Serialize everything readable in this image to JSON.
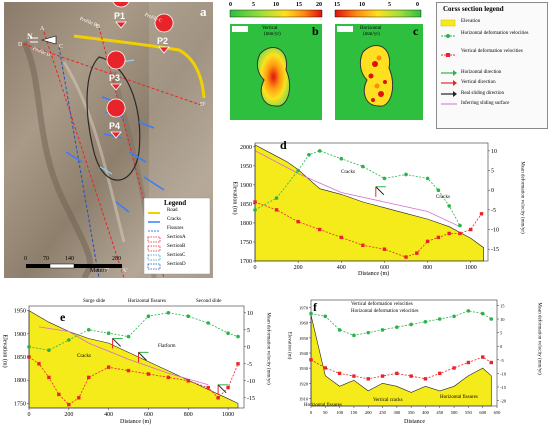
{
  "panels": {
    "a": {
      "letter": "a",
      "profile_labels": [
        "Profile B",
        "Profile C",
        "Profile D"
      ],
      "markers": [
        "P1",
        "P2",
        "P3",
        "P4"
      ],
      "points": [
        "A",
        "A'",
        "B",
        "B'",
        "C",
        "C'",
        "D",
        "D'"
      ],
      "north": "N",
      "legend": {
        "title": "Legend",
        "items": [
          "Road",
          "Cracks",
          "Fissures",
          "SectionA",
          "SectionB",
          "SectionC",
          "SectionD"
        ]
      },
      "scale": {
        "ticks": [
          "0",
          "70",
          "140",
          "280"
        ],
        "unit": "Meters"
      }
    },
    "b": {
      "letter": "b",
      "title_line1": "Vertical",
      "title_line2": "(mm/yr)",
      "cbar_ticks": [
        "0",
        "5",
        "10",
        "15",
        "20"
      ]
    },
    "c": {
      "letter": "c",
      "title_line1": "Horizontal",
      "title_line2": "(mm/yr)",
      "cbar_ticks": [
        "15",
        "10",
        "5",
        "0"
      ]
    },
    "legend": {
      "title": "Corss section legend",
      "items": [
        "Elevation",
        "Horizontal deformation velocities",
        "Vertical deformation velocities",
        "Horizontal direction",
        "Vertical direction",
        "Real sliding direction",
        "Inferring sliding surface"
      ]
    },
    "d": {
      "letter": "d",
      "xlabel": "Distance (m)",
      "ylabel": "Elevation (m)",
      "y2label": "Mean deformation velocity (mm/yr)",
      "xticks": [
        "0",
        "200",
        "400",
        "600",
        "800",
        "1000"
      ],
      "yticks": [
        "2000",
        "1950",
        "1900",
        "1850",
        "1800",
        "1750",
        "1700"
      ],
      "y2ticks": [
        "10",
        "5",
        "0",
        "-5",
        "-10",
        "-15"
      ],
      "annotations": [
        "Cracks",
        "Cracks"
      ]
    },
    "e": {
      "letter": "e",
      "xlabel": "Distance (m)",
      "ylabel": "Elevation (m)",
      "y2label": "Mean deformation velocity (mm/yr)",
      "xticks": [
        "0",
        "200",
        "400",
        "600",
        "800",
        "1000"
      ],
      "yticks": [
        "1950",
        "1900",
        "1850",
        "1800",
        "1750"
      ],
      "y2ticks": [
        "10",
        "5",
        "0",
        "-5",
        "-10",
        "-15"
      ],
      "zones": [
        "Surge slide",
        "Horizontal fissures",
        "Second slide"
      ],
      "annotations": [
        "Cracks",
        "Flatform"
      ]
    },
    "f": {
      "letter": "f",
      "xlabel": "Distance",
      "ylabel": "Elevation (m)",
      "y2label": "Mean deformation velocity (mm/yr)",
      "xticks": [
        "0",
        "50",
        "100",
        "150",
        "200",
        "250",
        "300",
        "350",
        "400",
        "450",
        "500",
        "550",
        "600",
        "650"
      ],
      "yticks": [
        "1970",
        "1960",
        "1950",
        "1940",
        "1930",
        "1920",
        "1910"
      ],
      "y2ticks": [
        "15",
        "10",
        "5",
        "0",
        "-5",
        "-10",
        "-15",
        "-20"
      ],
      "legend": [
        "Vertical deformation velocities",
        "Horizontal deformation velocities"
      ],
      "annotations": [
        "Horizontal fissures",
        "Vertical cracks",
        "Horizontal fissures"
      ]
    }
  },
  "colors": {
    "elevation": "#f5ea1a",
    "horizontal": "#2ab34a",
    "vertical": "#e8242a",
    "sliding_surface": "#d070d0",
    "road": "#f0d000"
  },
  "chart_data": [
    {
      "type": "area",
      "panel": "d",
      "elevation": {
        "x": [
          0,
          100,
          150,
          200,
          300,
          400,
          500,
          600,
          700,
          800,
          900,
          1000,
          1060
        ],
        "y": [
          2005,
          1975,
          1960,
          1940,
          1890,
          1875,
          1855,
          1840,
          1825,
          1810,
          1790,
          1760,
          1735
        ]
      },
      "series": [
        {
          "x": [
            0,
            100,
            200,
            250,
            300,
            400,
            500,
            600,
            700,
            800,
            850,
            900,
            950
          ],
          "y": [
            -5,
            -2,
            5,
            9,
            10,
            8,
            6,
            3,
            4,
            3,
            0,
            -4,
            -9
          ]
        },
        {
          "x": [
            0,
            100,
            200,
            300,
            400,
            500,
            600,
            700,
            750,
            800,
            850,
            900,
            950,
            1000,
            1050
          ],
          "y": [
            -3,
            -5,
            -8,
            -10,
            -12,
            -14,
            -15,
            -17,
            -16,
            -13,
            -12,
            -11,
            -11,
            -10,
            -6
          ]
        }
      ]
    },
    {
      "type": "area",
      "panel": "e",
      "elevation": {
        "x": [
          0,
          100,
          200,
          300,
          400,
          500,
          600,
          700,
          800,
          900,
          1000,
          1050
        ],
        "y": [
          1950,
          1925,
          1905,
          1890,
          1880,
          1860,
          1840,
          1820,
          1800,
          1780,
          1760,
          1750
        ]
      },
      "series": [
        {
          "x": [
            0,
            100,
            200,
            300,
            400,
            500,
            600,
            700,
            800,
            900,
            1000,
            1050
          ],
          "y": [
            0,
            -1,
            2,
            5,
            4,
            3,
            9,
            10,
            9,
            7,
            4,
            3
          ]
        },
        {
          "x": [
            0,
            50,
            100,
            150,
            200,
            250,
            300,
            400,
            500,
            600,
            700,
            800,
            900,
            950,
            1000,
            1050
          ],
          "y": [
            -3,
            -5,
            -9,
            -14,
            -17,
            -15,
            -9,
            -6,
            -7,
            -8,
            -9,
            -10,
            -12,
            -15,
            -12,
            -5
          ]
        }
      ]
    },
    {
      "type": "area",
      "panel": "f",
      "elevation": {
        "x": [
          0,
          50,
          100,
          150,
          200,
          250,
          300,
          350,
          400,
          450,
          500,
          550,
          600,
          630
        ],
        "y": [
          1965,
          1925,
          1918,
          1922,
          1915,
          1920,
          1918,
          1914,
          1918,
          1915,
          1918,
          1925,
          1930,
          1925
        ]
      },
      "series": [
        {
          "name": "Vertical deformation velocities",
          "x": [
            0,
            50,
            100,
            150,
            200,
            250,
            300,
            350,
            400,
            450,
            500,
            550,
            600,
            630
          ],
          "y": [
            -5,
            -8,
            -10,
            -11,
            -12,
            -11,
            -10,
            -11,
            -12,
            -10,
            -8,
            -6,
            -4,
            -6
          ]
        },
        {
          "name": "Horizontal deformation velocities",
          "x": [
            0,
            50,
            100,
            150,
            200,
            250,
            300,
            350,
            400,
            450,
            500,
            550,
            600,
            630
          ],
          "y": [
            12,
            11,
            6,
            4,
            5,
            6,
            7,
            8,
            9,
            10,
            11,
            13,
            12,
            10
          ]
        }
      ]
    }
  ]
}
